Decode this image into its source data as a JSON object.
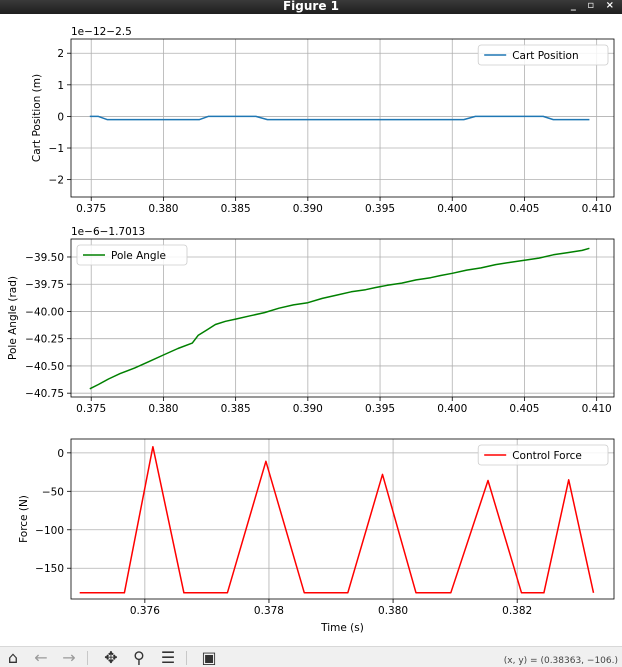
{
  "window": {
    "title": "Figure 1",
    "controls": [
      "_",
      "▫",
      "×"
    ]
  },
  "toolbar": {
    "buttons": [
      {
        "name": "home-icon",
        "glyph": "⌂"
      },
      {
        "name": "back-icon",
        "glyph": "←"
      },
      {
        "name": "forward-icon",
        "glyph": "→"
      },
      {
        "name": "pan-icon",
        "glyph": "✥"
      },
      {
        "name": "zoom-icon",
        "glyph": "⚲"
      },
      {
        "name": "configure-subplots-icon",
        "glyph": "☰"
      },
      {
        "name": "save-icon",
        "glyph": "▣"
      }
    ],
    "coords": "(x, y) = (0.38363, −106.)"
  },
  "chart_data": [
    {
      "type": "line",
      "xlabel": "",
      "ylabel": "Cart Position (m)",
      "offset_text": "1e−12−2.5",
      "xlim": [
        0.3736,
        0.4112
      ],
      "ylim": [
        -2.55,
        2.45
      ],
      "xticks": [
        0.375,
        0.38,
        0.385,
        0.39,
        0.395,
        0.4,
        0.405,
        0.41
      ],
      "xticklabels": [
        "0.375",
        "0.380",
        "0.385",
        "0.390",
        "0.395",
        "0.400",
        "0.405",
        "0.410"
      ],
      "yticks": [
        2,
        1,
        0,
        -1,
        -2
      ],
      "yticklabels": [
        "2",
        "1",
        "0",
        "−1",
        "−2"
      ],
      "grid": true,
      "legend_loc": "upper right",
      "series": [
        {
          "name": "Cart Position",
          "color": "#1f77b4",
          "x": [
            0.3749,
            0.3755,
            0.3761,
            0.3825,
            0.3831,
            0.3864,
            0.3872,
            0.4008,
            0.4016,
            0.4063,
            0.407,
            0.4095
          ],
          "y": [
            0,
            0,
            -0.1,
            -0.1,
            0,
            0,
            -0.1,
            -0.1,
            0,
            0,
            -0.1,
            -0.1
          ]
        }
      ]
    },
    {
      "type": "line",
      "xlabel": "",
      "ylabel": "Pole Angle (rad)",
      "offset_text": "1e−6−1.7013",
      "xlim": [
        0.3736,
        0.4112
      ],
      "ylim": [
        -40.785,
        -39.335
      ],
      "xticks": [
        0.375,
        0.38,
        0.385,
        0.39,
        0.395,
        0.4,
        0.405,
        0.41
      ],
      "xticklabels": [
        "0.375",
        "0.380",
        "0.385",
        "0.390",
        "0.395",
        "0.400",
        "0.405",
        "0.410"
      ],
      "yticks": [
        -39.5,
        -39.75,
        -40.0,
        -40.25,
        -40.5,
        -40.75
      ],
      "yticklabels": [
        "−39.50",
        "−39.75",
        "−40.00",
        "−40.25",
        "−40.50",
        "−40.75"
      ],
      "grid": true,
      "legend_loc": "upper left",
      "series": [
        {
          "name": "Pole Angle",
          "color": "#008000",
          "x": [
            0.3749,
            0.3755,
            0.3762,
            0.377,
            0.378,
            0.379,
            0.38,
            0.381,
            0.382,
            0.3824,
            0.383,
            0.3836,
            0.3843,
            0.385,
            0.386,
            0.387,
            0.388,
            0.389,
            0.39,
            0.391,
            0.392,
            0.393,
            0.394,
            0.3947,
            0.3955,
            0.3965,
            0.3975,
            0.3985,
            0.3992,
            0.4,
            0.401,
            0.402,
            0.403,
            0.404,
            0.405,
            0.406,
            0.407,
            0.408,
            0.409,
            0.4095
          ],
          "y": [
            -40.71,
            -40.67,
            -40.62,
            -40.57,
            -40.52,
            -40.46,
            -40.4,
            -40.34,
            -40.29,
            -40.22,
            -40.17,
            -40.12,
            -40.09,
            -40.07,
            -40.04,
            -40.01,
            -39.97,
            -39.94,
            -39.92,
            -39.88,
            -39.85,
            -39.82,
            -39.8,
            -39.78,
            -39.76,
            -39.74,
            -39.71,
            -39.69,
            -39.67,
            -39.65,
            -39.62,
            -39.6,
            -39.57,
            -39.55,
            -39.53,
            -39.51,
            -39.48,
            -39.46,
            -39.44,
            -39.42
          ]
        }
      ]
    },
    {
      "type": "line",
      "xlabel": "Time (s)",
      "ylabel": "Force (N)",
      "offset_text": "",
      "xlim": [
        0.37481,
        0.38356
      ],
      "ylim": [
        -190.0,
        18.0
      ],
      "xticks": [
        0.376,
        0.378,
        0.38,
        0.382
      ],
      "xticklabels": [
        "0.376",
        "0.378",
        "0.380",
        "0.382"
      ],
      "yticks": [
        0,
        -50,
        -100,
        -150
      ],
      "yticklabels": [
        "0",
        "−50",
        "−100",
        "−150"
      ],
      "grid": true,
      "legend_loc": "upper right",
      "series": [
        {
          "name": "Control Force",
          "color": "#ff0000",
          "x": [
            0.37495,
            0.37567,
            0.37613,
            0.37663,
            0.37733,
            0.37795,
            0.37857,
            0.37927,
            0.37983,
            0.38037,
            0.38093,
            0.38153,
            0.38207,
            0.38243,
            0.38283,
            0.38323
          ],
          "y": [
            -182,
            -182,
            8,
            -182,
            -182,
            -11,
            -182,
            -182,
            -28,
            -182,
            -182,
            -36,
            -182,
            -182,
            -35,
            -182
          ]
        }
      ]
    }
  ]
}
